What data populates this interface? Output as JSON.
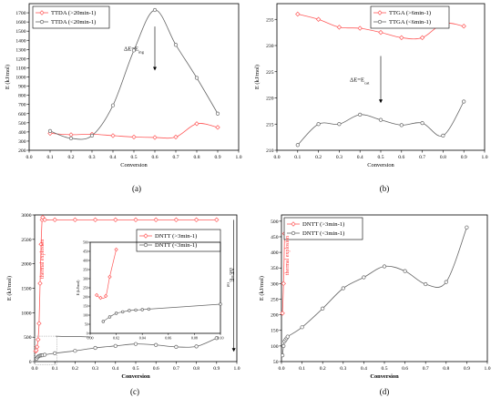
{
  "chart_data": [
    {
      "id": "a",
      "type": "line",
      "panel_label": "(a)",
      "xlabel": "Conversion",
      "ylabel": "E (kJ/mol)",
      "xlim": [
        0.0,
        1.0
      ],
      "ylim": [
        200,
        1800
      ],
      "xticks": [
        0.0,
        0.1,
        0.2,
        0.3,
        0.4,
        0.5,
        0.6,
        0.7,
        0.8,
        0.9,
        1.0
      ],
      "yticks": [
        200,
        300,
        400,
        500,
        600,
        700,
        800,
        900,
        1000,
        1100,
        1200,
        1300,
        1400,
        1500,
        1600,
        1700
      ],
      "legend_position": "top-left",
      "annotation": {
        "prefix": "ΔE=E",
        "sub": "ing",
        "x": 0.6,
        "y_from": 1550,
        "y_to": 1070
      },
      "series": [
        {
          "name": "TTDA (>20min-1)",
          "color": "#ff5a5a",
          "marker": "diamond",
          "x": [
            0.1,
            0.2,
            0.3,
            0.4,
            0.5,
            0.6,
            0.7,
            0.8,
            0.9
          ],
          "y": [
            385,
            370,
            375,
            360,
            345,
            340,
            345,
            490,
            450
          ]
        },
        {
          "name": "TTDA (<20min-1)",
          "color": "#666666",
          "marker": "circle",
          "x": [
            0.1,
            0.2,
            0.3,
            0.4,
            0.5,
            0.6,
            0.7,
            0.8,
            0.9
          ],
          "y": [
            410,
            330,
            360,
            690,
            1290,
            1730,
            1350,
            990,
            600
          ]
        }
      ]
    },
    {
      "id": "b",
      "type": "line",
      "panel_label": "(b)",
      "xlabel": "Conversion",
      "ylabel": "E (kJ/mol)",
      "xlim": [
        0.0,
        1.0
      ],
      "ylim": [
        210,
        238
      ],
      "xticks": [
        0.0,
        0.1,
        0.2,
        0.3,
        0.4,
        0.5,
        0.6,
        0.7,
        0.8,
        0.9,
        1.0
      ],
      "yticks": [
        210,
        215,
        220,
        225,
        230,
        235
      ],
      "legend_position": "top-right",
      "annotation": {
        "prefix": "ΔE=E",
        "sub": "cat",
        "x": 0.5,
        "y_from": 228,
        "y_to": 219
      },
      "series": [
        {
          "name": "TTGA (>6min-1)",
          "color": "#ff5a5a",
          "marker": "diamond",
          "x": [
            0.1,
            0.2,
            0.3,
            0.4,
            0.5,
            0.6,
            0.7,
            0.8,
            0.9
          ],
          "y": [
            236,
            235,
            233.5,
            233.3,
            232.5,
            231.5,
            231.5,
            234.2,
            233.7
          ]
        },
        {
          "name": "TTGA (<6min-1)",
          "color": "#666666",
          "marker": "circle",
          "x": [
            0.1,
            0.2,
            0.3,
            0.4,
            0.5,
            0.6,
            0.7,
            0.8,
            0.9
          ],
          "y": [
            211,
            215,
            215,
            216.8,
            215.8,
            214.8,
            215.2,
            212.8,
            219.3
          ]
        }
      ]
    },
    {
      "id": "c",
      "type": "line",
      "panel_label": "(c)",
      "xlabel": "Conversion",
      "ylabel": "E (kJ/mol)",
      "xlim": [
        0.0,
        1.0
      ],
      "ylim": [
        0,
        3000
      ],
      "xticks": [
        0.0,
        0.1,
        0.2,
        0.3,
        0.4,
        0.5,
        0.6,
        0.7,
        0.8,
        0.9,
        1.0
      ],
      "yticks": [
        0,
        500,
        1000,
        1500,
        2000,
        2500,
        3000
      ],
      "legend_position": "upper-right",
      "annotation": {
        "prefix": "ΔE=E",
        "sub": "cat",
        "x": 0.985,
        "y_from": 2900,
        "y_to": 200
      },
      "red_label": "thermal explosion",
      "series": [
        {
          "name": "DNTT (>3min-1)",
          "color": "#ff5a5a",
          "marker": "diamond",
          "x": [
            0.005,
            0.008,
            0.012,
            0.017,
            0.022,
            0.027,
            0.032,
            0.037,
            0.04,
            0.05,
            0.1,
            0.2,
            0.3,
            0.4,
            0.5,
            0.6,
            0.7,
            0.8,
            0.9
          ],
          "y": [
            210,
            230,
            300,
            450,
            780,
            1600,
            2400,
            2900,
            2950,
            2900,
            2900,
            2900,
            2900,
            2900,
            2900,
            2900,
            2900,
            2900,
            2900
          ]
        },
        {
          "name": "DNTT (<3min-1)",
          "color": "#666666",
          "marker": "circle",
          "x": [
            0.01,
            0.015,
            0.02,
            0.025,
            0.03,
            0.035,
            0.04,
            0.05,
            0.1,
            0.2,
            0.3,
            0.4,
            0.5,
            0.6,
            0.7,
            0.8,
            0.9
          ],
          "y": [
            60,
            90,
            110,
            120,
            125,
            128,
            130,
            140,
            170,
            220,
            280,
            320,
            360,
            340,
            300,
            310,
            480
          ]
        }
      ],
      "inset": {
        "xlim": [
          0.0,
          0.1
        ],
        "ylim": [
          0,
          500
        ],
        "xticks": [
          0.0,
          0.02,
          0.04,
          0.06,
          0.08,
          0.1
        ],
        "yticks": [
          0,
          50,
          100,
          150,
          200,
          250,
          300,
          350,
          400,
          450,
          500
        ],
        "xlabel": "",
        "ylabel": "E (kJ/mol)",
        "series": [
          {
            "color": "#ff5a5a",
            "marker": "diamond",
            "x": [
              0.005,
              0.008,
              0.012,
              0.015,
              0.02
            ],
            "y": [
              210,
              195,
              205,
              310,
              460
            ]
          },
          {
            "color": "#666666",
            "marker": "circle",
            "x": [
              0.01,
              0.015,
              0.02,
              0.025,
              0.03,
              0.035,
              0.04,
              0.045,
              0.1
            ],
            "y": [
              65,
              90,
              110,
              118,
              125,
              128,
              130,
              133,
              160
            ]
          }
        ]
      }
    },
    {
      "id": "d",
      "type": "line",
      "panel_label": "(d)",
      "xlabel": "Conversion",
      "ylabel": "E (kJ/mol)",
      "xlim": [
        0.0,
        1.0
      ],
      "ylim": [
        50,
        520
      ],
      "xticks": [
        0.0,
        0.1,
        0.2,
        0.3,
        0.4,
        0.5,
        0.6,
        0.7,
        0.8,
        0.9,
        1.0
      ],
      "yticks": [
        50,
        100,
        150,
        200,
        250,
        300,
        350,
        400,
        450,
        500
      ],
      "legend_position": "top-left",
      "red_label": "thermal explosion",
      "series": [
        {
          "name": "DNTT (>3min-1)",
          "color": "#ff5a5a",
          "marker": "diamond",
          "x": [
            0.005,
            0.01,
            0.015
          ],
          "y": [
            205,
            300,
            460
          ]
        },
        {
          "name": "DNTT (<3min-1)",
          "color": "#666666",
          "marker": "circle",
          "x": [
            0.005,
            0.01,
            0.015,
            0.02,
            0.025,
            0.03,
            0.1,
            0.2,
            0.3,
            0.4,
            0.5,
            0.6,
            0.7,
            0.8,
            0.9
          ],
          "y": [
            70,
            100,
            115,
            120,
            125,
            130,
            160,
            220,
            285,
            320,
            355,
            340,
            298,
            305,
            480
          ]
        }
      ]
    }
  ]
}
